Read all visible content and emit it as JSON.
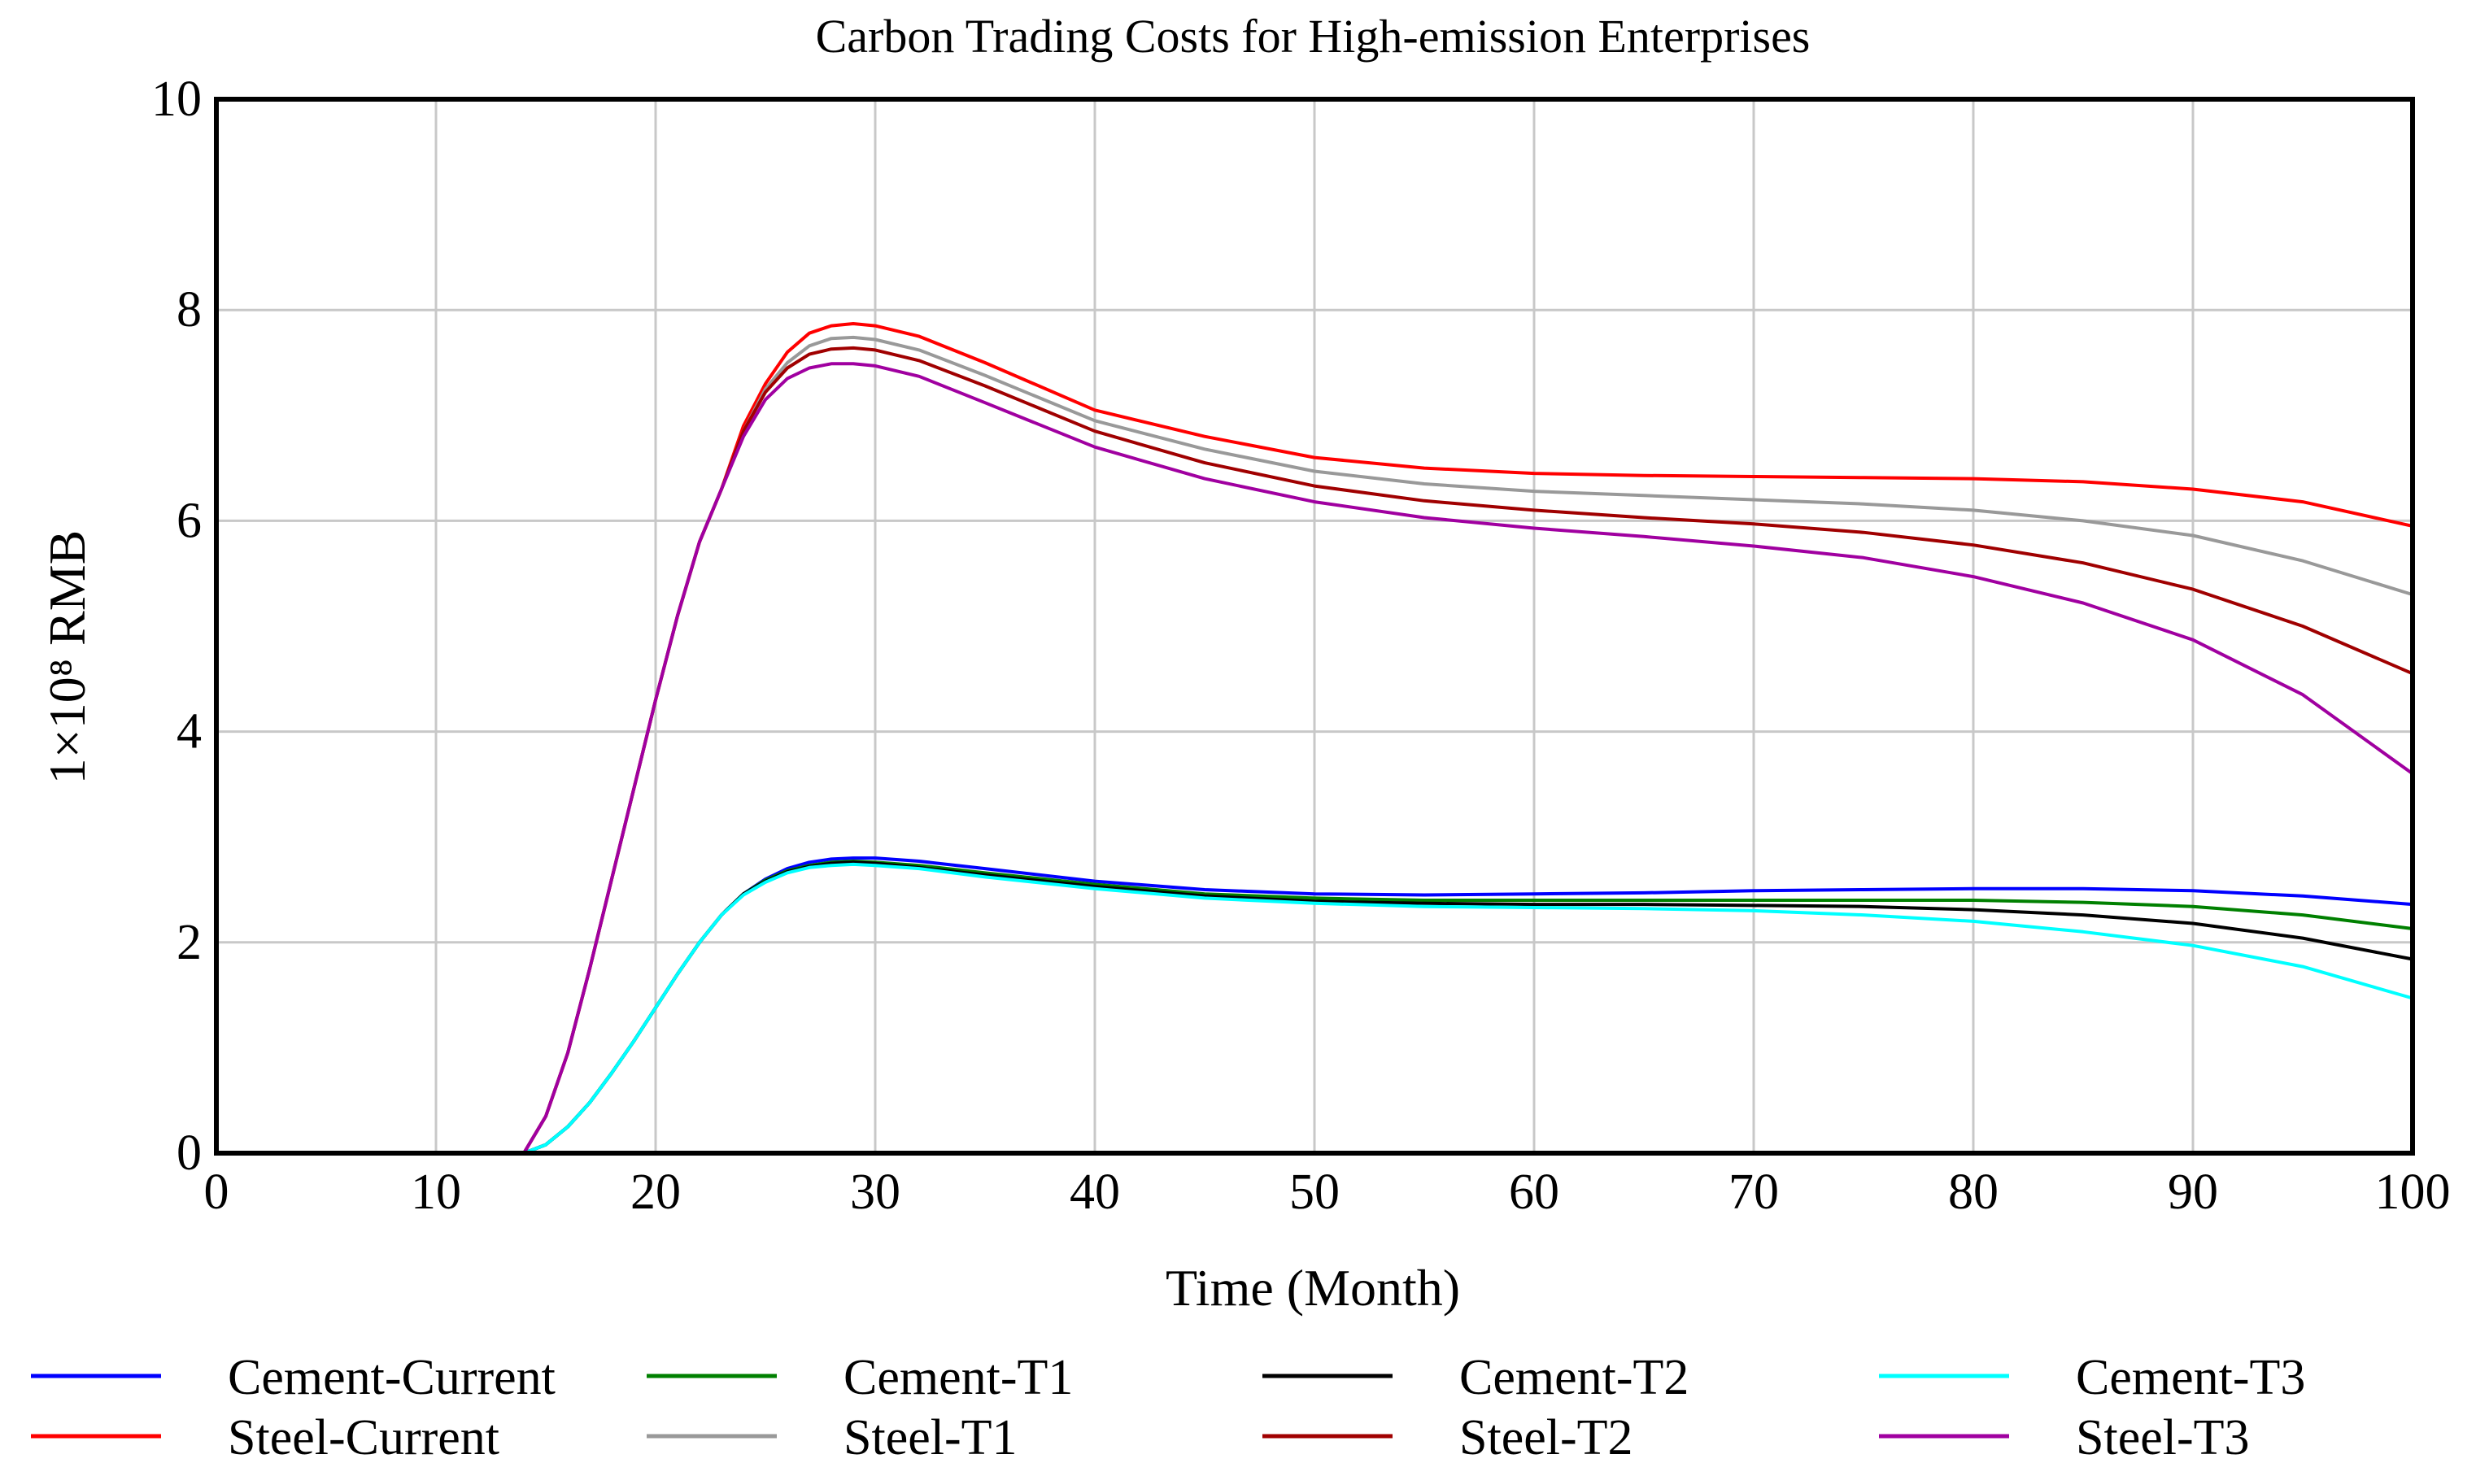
{
  "chart_data": {
    "type": "line",
    "title": "Carbon Trading Costs for High-emission Enterprises",
    "xlabel": "Time (Month)",
    "ylabel": "1×10⁸ RMB",
    "xlim": [
      0,
      100
    ],
    "ylim": [
      0,
      10
    ],
    "xticks": [
      "0",
      "10",
      "20",
      "30",
      "40",
      "50",
      "60",
      "70",
      "80",
      "90",
      "100"
    ],
    "yticks": [
      "0",
      "2",
      "4",
      "6",
      "8",
      "10"
    ],
    "grid": true,
    "legend_position": "bottom",
    "series": [
      {
        "name": "Cement-Current",
        "color": "#0000ff",
        "x": [
          0,
          14,
          15,
          16,
          17,
          18,
          19,
          20,
          21,
          22,
          23,
          24,
          25,
          26,
          27,
          28,
          29,
          30,
          32,
          35,
          40,
          45,
          50,
          55,
          60,
          65,
          70,
          75,
          80,
          85,
          90,
          95,
          100
        ],
        "y": [
          0,
          0,
          0.08,
          0.25,
          0.48,
          0.76,
          1.06,
          1.38,
          1.7,
          2.0,
          2.26,
          2.46,
          2.6,
          2.7,
          2.76,
          2.79,
          2.8,
          2.8,
          2.77,
          2.7,
          2.58,
          2.5,
          2.46,
          2.45,
          2.46,
          2.47,
          2.49,
          2.5,
          2.51,
          2.51,
          2.49,
          2.44,
          2.36
        ]
      },
      {
        "name": "Cement-T1",
        "color": "#008000",
        "x": [
          0,
          14,
          15,
          16,
          17,
          18,
          19,
          20,
          21,
          22,
          23,
          24,
          25,
          26,
          27,
          28,
          29,
          30,
          32,
          35,
          40,
          45,
          50,
          55,
          60,
          65,
          70,
          75,
          80,
          85,
          90,
          95,
          100
        ],
        "y": [
          0,
          0,
          0.08,
          0.25,
          0.48,
          0.76,
          1.06,
          1.38,
          1.7,
          2.0,
          2.26,
          2.46,
          2.59,
          2.68,
          2.73,
          2.76,
          2.77,
          2.76,
          2.73,
          2.66,
          2.55,
          2.46,
          2.42,
          2.4,
          2.4,
          2.4,
          2.4,
          2.4,
          2.4,
          2.38,
          2.34,
          2.26,
          2.13
        ]
      },
      {
        "name": "Cement-T2",
        "color": "#000000",
        "x": [
          0,
          14,
          15,
          16,
          17,
          18,
          19,
          20,
          21,
          22,
          23,
          24,
          25,
          26,
          27,
          28,
          29,
          30,
          32,
          35,
          40,
          45,
          50,
          55,
          60,
          65,
          70,
          75,
          80,
          85,
          90,
          95,
          100
        ],
        "y": [
          0,
          0,
          0.08,
          0.25,
          0.48,
          0.76,
          1.06,
          1.38,
          1.7,
          2.0,
          2.26,
          2.46,
          2.58,
          2.67,
          2.72,
          2.75,
          2.76,
          2.75,
          2.71,
          2.64,
          2.53,
          2.44,
          2.39,
          2.37,
          2.36,
          2.36,
          2.35,
          2.34,
          2.31,
          2.26,
          2.18,
          2.04,
          1.84
        ]
      },
      {
        "name": "Cement-T3",
        "color": "#00ffff",
        "x": [
          0,
          14,
          15,
          16,
          17,
          18,
          19,
          20,
          21,
          22,
          23,
          24,
          25,
          26,
          27,
          28,
          29,
          30,
          32,
          35,
          40,
          45,
          50,
          55,
          60,
          65,
          70,
          75,
          80,
          85,
          90,
          95,
          100
        ],
        "y": [
          0,
          0,
          0.08,
          0.25,
          0.48,
          0.76,
          1.06,
          1.38,
          1.7,
          2.0,
          2.26,
          2.45,
          2.57,
          2.66,
          2.71,
          2.73,
          2.74,
          2.73,
          2.7,
          2.62,
          2.51,
          2.42,
          2.37,
          2.34,
          2.33,
          2.32,
          2.3,
          2.26,
          2.2,
          2.1,
          1.97,
          1.77,
          1.47
        ]
      },
      {
        "name": "Steel-Current",
        "color": "#ff0000",
        "x": [
          0,
          14,
          15,
          16,
          17,
          18,
          19,
          20,
          21,
          22,
          23,
          24,
          25,
          26,
          27,
          28,
          29,
          30,
          32,
          35,
          40,
          45,
          50,
          55,
          60,
          65,
          70,
          75,
          80,
          85,
          90,
          95,
          100
        ],
        "y": [
          0,
          0,
          0.35,
          0.95,
          1.75,
          2.6,
          3.45,
          4.3,
          5.1,
          5.8,
          6.3,
          6.9,
          7.3,
          7.6,
          7.78,
          7.85,
          7.87,
          7.85,
          7.75,
          7.5,
          7.05,
          6.8,
          6.6,
          6.5,
          6.45,
          6.43,
          6.42,
          6.41,
          6.4,
          6.37,
          6.3,
          6.18,
          5.95
        ]
      },
      {
        "name": "Steel-T1",
        "color": "#999999",
        "x": [
          0,
          14,
          15,
          16,
          17,
          18,
          19,
          20,
          21,
          22,
          23,
          24,
          25,
          26,
          27,
          28,
          29,
          30,
          32,
          35,
          40,
          45,
          50,
          55,
          60,
          65,
          70,
          75,
          80,
          85,
          90,
          95,
          100
        ],
        "y": [
          0,
          0,
          0.35,
          0.95,
          1.75,
          2.6,
          3.45,
          4.3,
          5.1,
          5.8,
          6.3,
          6.85,
          7.25,
          7.5,
          7.66,
          7.73,
          7.74,
          7.72,
          7.62,
          7.38,
          6.95,
          6.68,
          6.47,
          6.35,
          6.28,
          6.24,
          6.2,
          6.16,
          6.1,
          6.0,
          5.86,
          5.62,
          5.3
        ]
      },
      {
        "name": "Steel-T2",
        "color": "#a00000",
        "x": [
          0,
          14,
          15,
          16,
          17,
          18,
          19,
          20,
          21,
          22,
          23,
          24,
          25,
          26,
          27,
          28,
          29,
          30,
          32,
          35,
          40,
          45,
          50,
          55,
          60,
          65,
          70,
          75,
          80,
          85,
          90,
          95,
          100
        ],
        "y": [
          0,
          0,
          0.35,
          0.95,
          1.75,
          2.6,
          3.45,
          4.3,
          5.1,
          5.8,
          6.3,
          6.85,
          7.22,
          7.45,
          7.58,
          7.63,
          7.64,
          7.62,
          7.52,
          7.28,
          6.85,
          6.55,
          6.33,
          6.19,
          6.1,
          6.03,
          5.97,
          5.89,
          5.77,
          5.6,
          5.35,
          5.0,
          4.55
        ]
      },
      {
        "name": "Steel-T3",
        "color": "#a000a0",
        "x": [
          0,
          14,
          15,
          16,
          17,
          18,
          19,
          20,
          21,
          22,
          23,
          24,
          25,
          26,
          27,
          28,
          29,
          30,
          32,
          35,
          40,
          45,
          50,
          55,
          60,
          65,
          70,
          75,
          80,
          85,
          90,
          95,
          100
        ],
        "y": [
          0,
          0,
          0.35,
          0.95,
          1.75,
          2.6,
          3.45,
          4.3,
          5.1,
          5.8,
          6.3,
          6.8,
          7.15,
          7.35,
          7.45,
          7.49,
          7.49,
          7.47,
          7.37,
          7.12,
          6.7,
          6.4,
          6.18,
          6.03,
          5.93,
          5.85,
          5.76,
          5.65,
          5.47,
          5.22,
          4.87,
          4.35,
          3.6
        ]
      }
    ]
  }
}
